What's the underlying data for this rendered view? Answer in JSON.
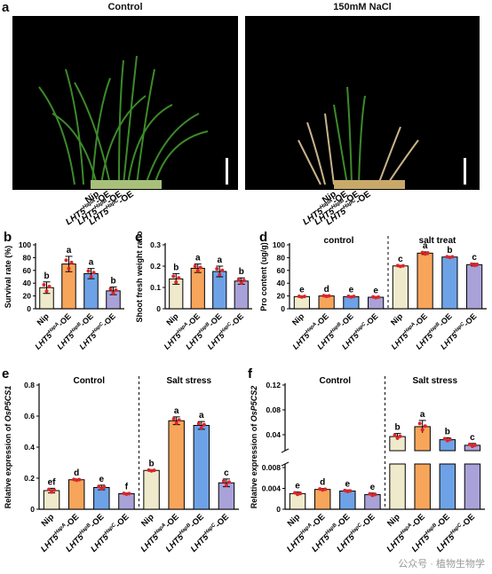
{
  "panel_a": {
    "label": "a",
    "titles": [
      "Control",
      "150mM NaCl"
    ],
    "xlabels": [
      "Nip",
      "LHT5^HapA-OE",
      "LHT5^HapB-OE",
      "LHT5^HapC-OE"
    ]
  },
  "colors": {
    "Nip": "#efeacb",
    "HapA": "#f7a55a",
    "HapB": "#6ea2e6",
    "HapC": "#a9a2d8",
    "point": "#d9262b"
  },
  "chart_data": [
    {
      "id": "b",
      "type": "bar",
      "ylabel": "Survival rate (%)",
      "ylim": [
        0,
        100
      ],
      "yticks": [
        0,
        20,
        40,
        60,
        80,
        100
      ],
      "categories": [
        "Nip",
        "LHT5^HapA-OE",
        "LHT5^HapB-OE",
        "LHT5^HapC-OE"
      ],
      "values": [
        33,
        70,
        55,
        28
      ],
      "errors": [
        9,
        12,
        8,
        6
      ],
      "letters": [
        "b",
        "a",
        "a",
        "b"
      ]
    },
    {
      "id": "c",
      "type": "bar",
      "ylabel": "Shoot fresh weight ratio",
      "ylim": [
        0,
        0.3
      ],
      "yticks": [
        0.0,
        0.1,
        0.2,
        0.3
      ],
      "categories": [
        "Nip",
        "LHT5^HapA-OE",
        "LHT5^HapB-OE",
        "LHT5^HapC-OE"
      ],
      "values": [
        0.14,
        0.19,
        0.175,
        0.13
      ],
      "errors": [
        0.025,
        0.02,
        0.025,
        0.015
      ],
      "letters": [
        "b",
        "a",
        "a",
        "b"
      ]
    },
    {
      "id": "d",
      "type": "bar",
      "ylabel": "Pro content (ug/g)",
      "ylim": [
        0,
        100
      ],
      "yticks": [
        0,
        20,
        40,
        60,
        80,
        100
      ],
      "groups": [
        "control",
        "salt treat"
      ],
      "categories": [
        "Nip",
        "LHT5^HapA-OE",
        "LHT5^HapB-OE",
        "LHT5^HapC-OE",
        "Nip",
        "LHT5^HapA-OE",
        "LHT5^HapB-OE",
        "LHT5^HapC-OE"
      ],
      "values": [
        19,
        20,
        19,
        18,
        67,
        87,
        81,
        69
      ],
      "errors": [
        1,
        1,
        1,
        1,
        1,
        2,
        1,
        2
      ],
      "letters": [
        "e",
        "d",
        "e",
        "e",
        "c",
        "a",
        "b",
        "c"
      ]
    },
    {
      "id": "e",
      "type": "bar",
      "ylabel": "Relative expression of OsP5CS1",
      "ylim": [
        0,
        0.8
      ],
      "yticks": [
        0.0,
        0.2,
        0.4,
        0.6,
        0.8
      ],
      "groups": [
        "Control",
        "Salt stress"
      ],
      "categories": [
        "Nip",
        "LHT5^HapA-OE",
        "LHT5^HapB-OE",
        "LHT5^HapC-OE",
        "Nip",
        "LHT5^HapA-OE",
        "LHT5^HapB-OE",
        "LHT5^HapC-OE"
      ],
      "values": [
        0.12,
        0.19,
        0.14,
        0.1,
        0.25,
        0.57,
        0.54,
        0.17
      ],
      "errors": [
        0.015,
        0.005,
        0.015,
        0.005,
        0.005,
        0.025,
        0.025,
        0.025
      ],
      "letters": [
        "ef",
        "d",
        "e",
        "f",
        "b",
        "a",
        "a",
        "c"
      ]
    },
    {
      "id": "f",
      "type": "bar",
      "ylabel": "Relative expression of OsP5CS2",
      "scale": "broken",
      "yticks": [
        0.0,
        0.004,
        0.008,
        0.04,
        0.08,
        0.12
      ],
      "groups": [
        "Control",
        "Salt stress"
      ],
      "categories": [
        "Nip",
        "LHT5^HapA-OE",
        "LHT5^HapB-OE",
        "LHT5^HapC-OE",
        "Nip",
        "LHT5^HapA-OE",
        "LHT5^HapB-OE",
        "LHT5^HapC-OE"
      ],
      "values": [
        0.003,
        0.0038,
        0.0035,
        0.0028,
        0.037,
        0.053,
        0.032,
        0.023
      ],
      "errors": [
        0.0003,
        0.0002,
        0.0002,
        0.0003,
        0.005,
        0.01,
        0.003,
        0.003
      ],
      "letters": [
        "e",
        "d",
        "e",
        "e",
        "b",
        "a",
        "b",
        "c"
      ]
    }
  ],
  "watermark": "公众号 · 植物生物学"
}
